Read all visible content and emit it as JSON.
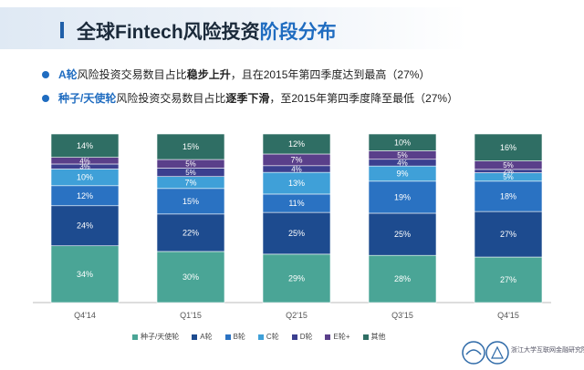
{
  "header": {
    "title_plain": "全球Fintech风险投资",
    "title_highlight": "阶段分布"
  },
  "bullets": [
    {
      "keyword": "A轮",
      "text_a": "风险投资交易数目占比",
      "emphasis": "稳步上升",
      "text_b": "，且在2015年第四季度达到最高（27%）"
    },
    {
      "keyword": "种子/天使轮",
      "text_a": "风险投资交易数目占比",
      "emphasis": "逐季下滑",
      "text_b": "，至2015年第四季度降至最低（27%）"
    }
  ],
  "colors": {
    "accent": "#1f6cc0",
    "series": [
      "#4aa596",
      "#1d4b8f",
      "#2a72c2",
      "#3fa0d8",
      "#3b3f8f",
      "#5a3f8a",
      "#2f6e64"
    ]
  },
  "logo": {
    "text": "浙江大学互联网金融研究院"
  },
  "chart_data": {
    "type": "bar",
    "stacked": true,
    "categories": [
      "Q4'14",
      "Q1'15",
      "Q2'15",
      "Q3'15",
      "Q4'15"
    ],
    "series": [
      {
        "name": "种子/天使轮",
        "values": [
          34,
          30,
          29,
          28,
          27
        ]
      },
      {
        "name": "A轮",
        "values": [
          24,
          22,
          25,
          25,
          27
        ]
      },
      {
        "name": "B轮",
        "values": [
          12,
          15,
          11,
          19,
          18
        ]
      },
      {
        "name": "C轮",
        "values": [
          10,
          7,
          13,
          9,
          5
        ]
      },
      {
        "name": "D轮",
        "values": [
          3,
          5,
          4,
          4,
          2
        ]
      },
      {
        "name": "E轮+",
        "values": [
          4,
          5,
          7,
          5,
          5
        ]
      },
      {
        "name": "其他",
        "values": [
          14,
          15,
          12,
          10,
          16
        ]
      }
    ],
    "labels": [
      [
        "34%",
        "30%",
        "29%",
        "28%",
        "27%"
      ],
      [
        "24%",
        "22%",
        "25%",
        "25%",
        "27%"
      ],
      [
        "12%",
        "15%",
        "11%",
        "19%",
        "18%"
      ],
      [
        "10%",
        "7%",
        "13%",
        "9%",
        "5%"
      ],
      [
        "3%",
        "5%",
        "4%",
        "4%",
        "2%"
      ],
      [
        "4%",
        "5%",
        "7%",
        "5%",
        "5%"
      ],
      [
        "14%",
        "15%",
        "12%",
        "10%",
        "16%"
      ]
    ],
    "ylim": [
      0,
      100
    ],
    "legend_position": "bottom",
    "grid": false,
    "title": "",
    "xlabel": "",
    "ylabel": ""
  }
}
